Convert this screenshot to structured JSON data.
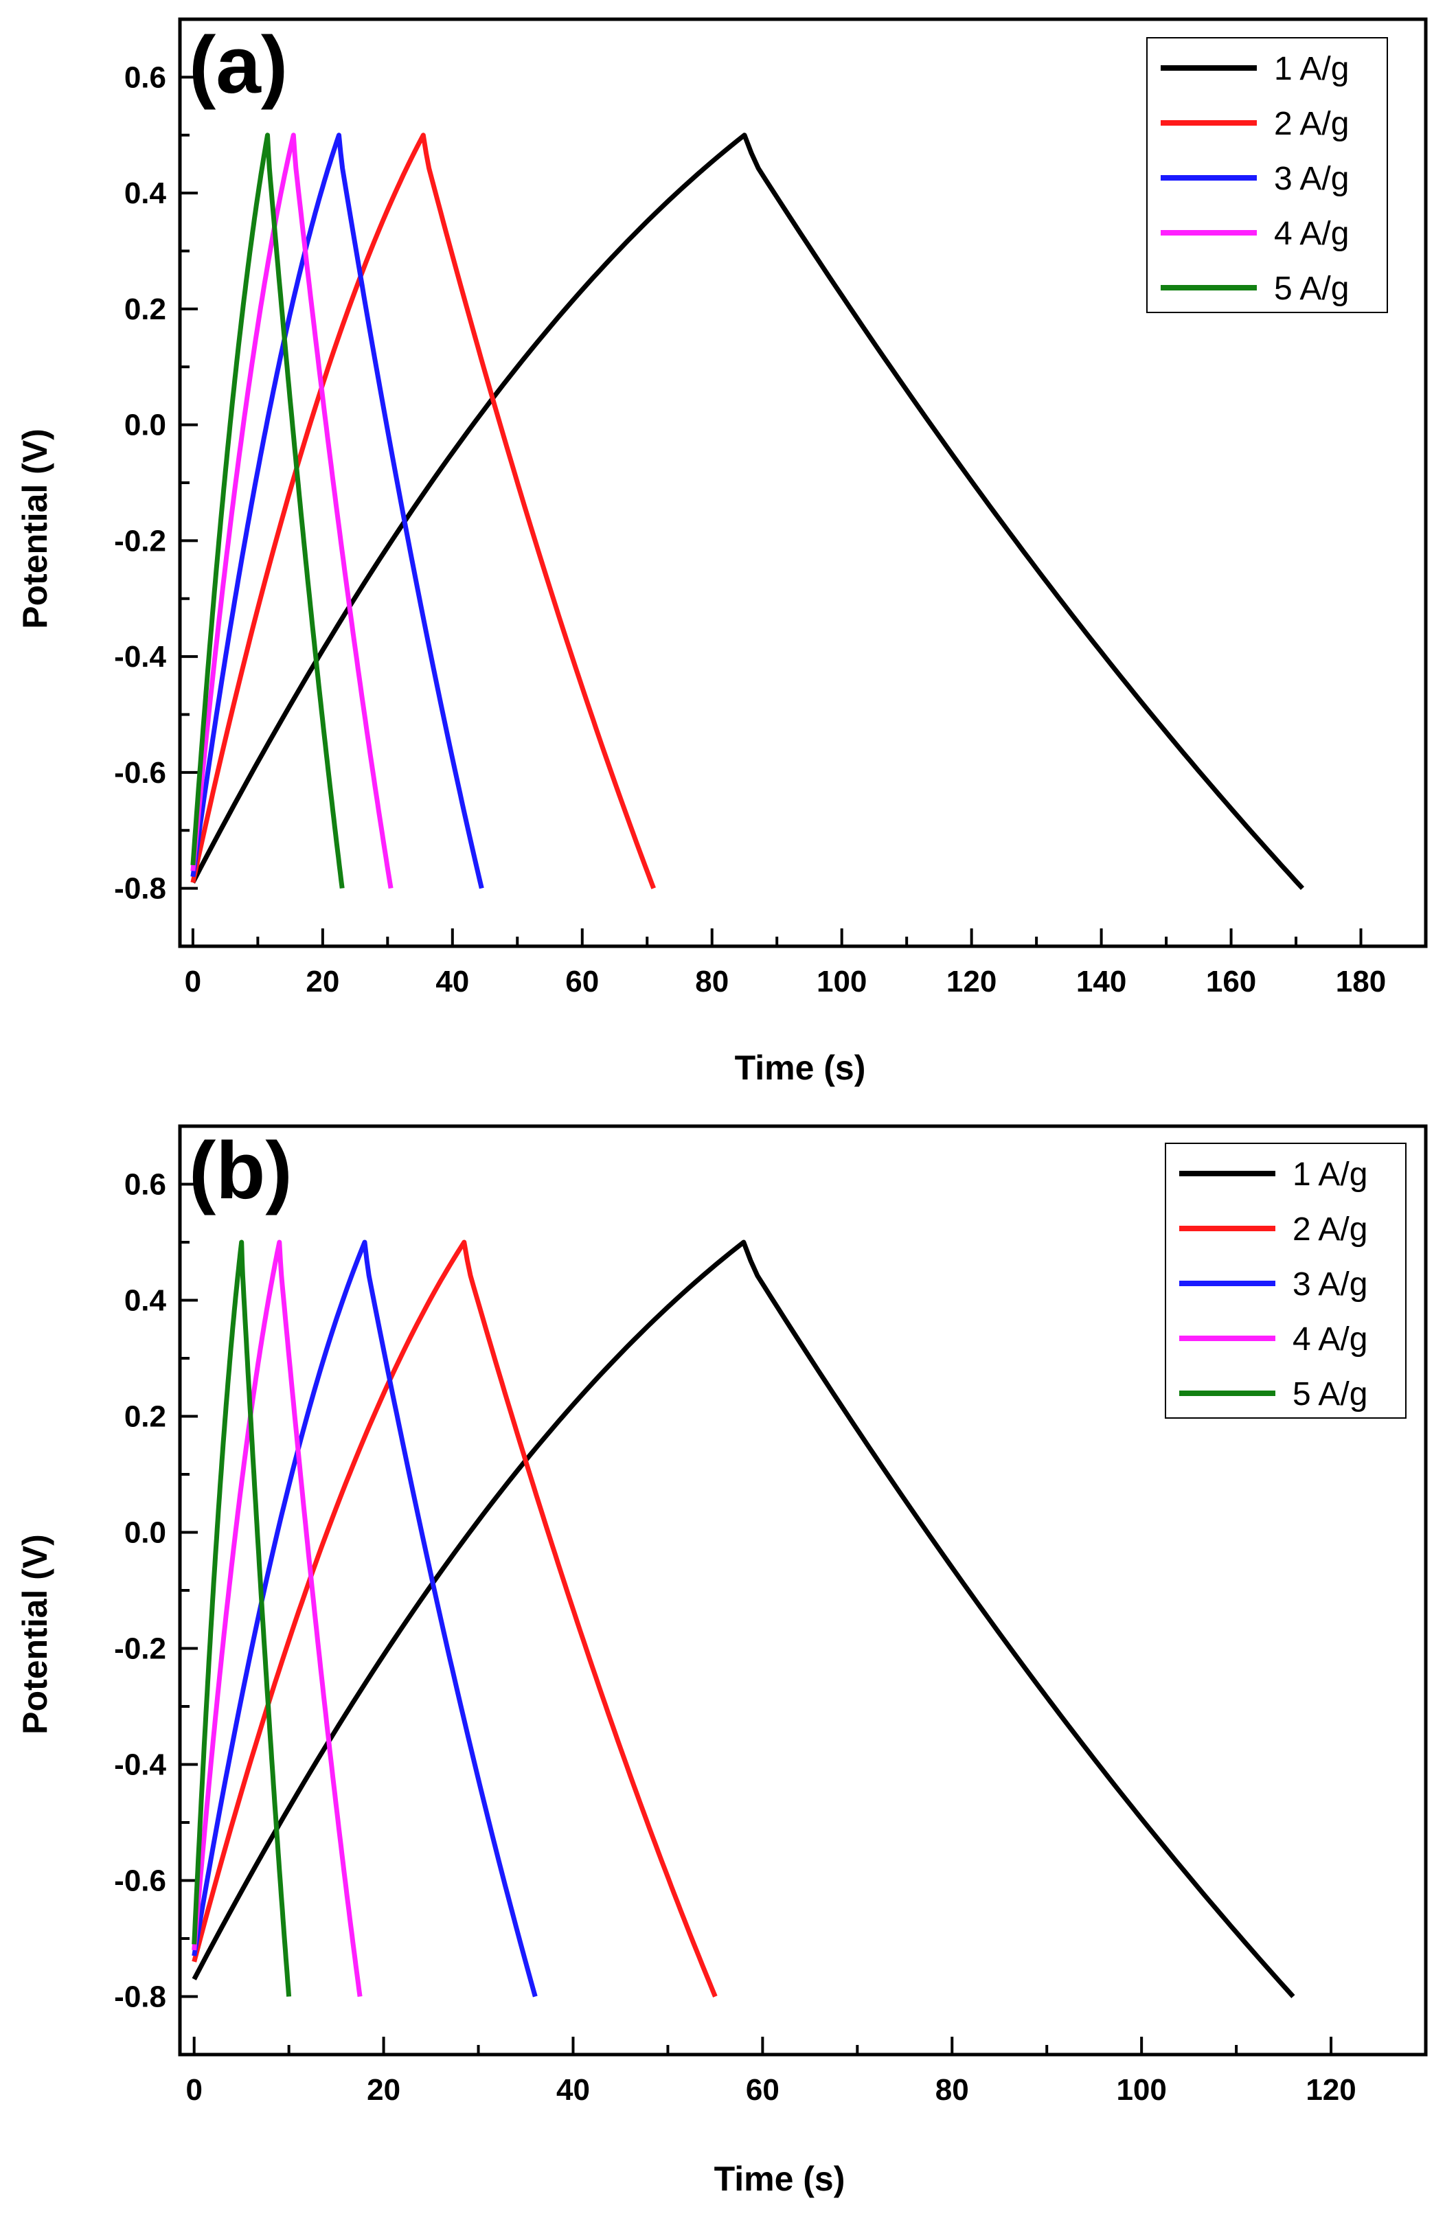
{
  "chart_data": [
    {
      "type": "line",
      "panel_label": "(a)",
      "xlabel": "Time (s)",
      "ylabel": "Potential (V)",
      "xlim": [
        -2,
        190
      ],
      "ylim": [
        -0.9,
        0.7
      ],
      "xticks": [
        0,
        20,
        40,
        60,
        80,
        100,
        120,
        140,
        160,
        180
      ],
      "yticks": [
        -0.8,
        -0.6,
        -0.4,
        -0.2,
        0.0,
        0.2,
        0.4,
        0.6
      ],
      "ytick_labels": [
        "-0.8",
        "-0.6",
        "-0.4",
        "-0.2",
        "0.0",
        "0.2",
        "0.4",
        "0.6"
      ],
      "legend_position": "top-right",
      "series": [
        {
          "name": "1 A/g",
          "color": "#000000",
          "t_charge": 85,
          "t_end": 171,
          "v_start": -0.79,
          "v_top": 0.5,
          "v_end": -0.8
        },
        {
          "name": "2 A/g",
          "color": "#ff1a1a",
          "t_charge": 35.5,
          "t_end": 71,
          "v_start": -0.79,
          "v_top": 0.5,
          "v_end": -0.8
        },
        {
          "name": "3 A/g",
          "color": "#1a1aff",
          "t_charge": 22.5,
          "t_end": 44.5,
          "v_start": -0.78,
          "v_top": 0.5,
          "v_end": -0.8
        },
        {
          "name": "4 A/g",
          "color": "#ff20ff",
          "t_charge": 15.5,
          "t_end": 30.5,
          "v_start": -0.77,
          "v_top": 0.5,
          "v_end": -0.8
        },
        {
          "name": "5 A/g",
          "color": "#128012",
          "t_charge": 11.5,
          "t_end": 23,
          "v_start": -0.76,
          "v_top": 0.5,
          "v_end": -0.8
        }
      ]
    },
    {
      "type": "line",
      "panel_label": "(b)",
      "xlabel": "Time (s)",
      "ylabel": "Potential (V)",
      "xlim": [
        -1.5,
        130
      ],
      "ylim": [
        -0.9,
        0.7
      ],
      "xticks": [
        0,
        20,
        40,
        60,
        80,
        100,
        120
      ],
      "yticks": [
        -0.8,
        -0.6,
        -0.4,
        -0.2,
        0.0,
        0.2,
        0.4,
        0.6
      ],
      "ytick_labels": [
        "-0.8",
        "-0.6",
        "-0.4",
        "-0.2",
        "0.0",
        "0.2",
        "0.4",
        "0.6"
      ],
      "legend_position": "top-right",
      "series": [
        {
          "name": "1 A/g",
          "color": "#000000",
          "t_charge": 58,
          "t_end": 116,
          "v_start": -0.77,
          "v_top": 0.5,
          "v_end": -0.8
        },
        {
          "name": "2 A/g",
          "color": "#ff1a1a",
          "t_charge": 28.5,
          "t_end": 55,
          "v_start": -0.74,
          "v_top": 0.5,
          "v_end": -0.8
        },
        {
          "name": "3 A/g",
          "color": "#1a1aff",
          "t_charge": 18,
          "t_end": 36,
          "v_start": -0.73,
          "v_top": 0.5,
          "v_end": -0.8
        },
        {
          "name": "4 A/g",
          "color": "#ff20ff",
          "t_charge": 9,
          "t_end": 17.5,
          "v_start": -0.72,
          "v_top": 0.5,
          "v_end": -0.8
        },
        {
          "name": "5 A/g",
          "color": "#128012",
          "t_charge": 5,
          "t_end": 10,
          "v_start": -0.71,
          "v_top": 0.5,
          "v_end": -0.8
        }
      ]
    }
  ]
}
